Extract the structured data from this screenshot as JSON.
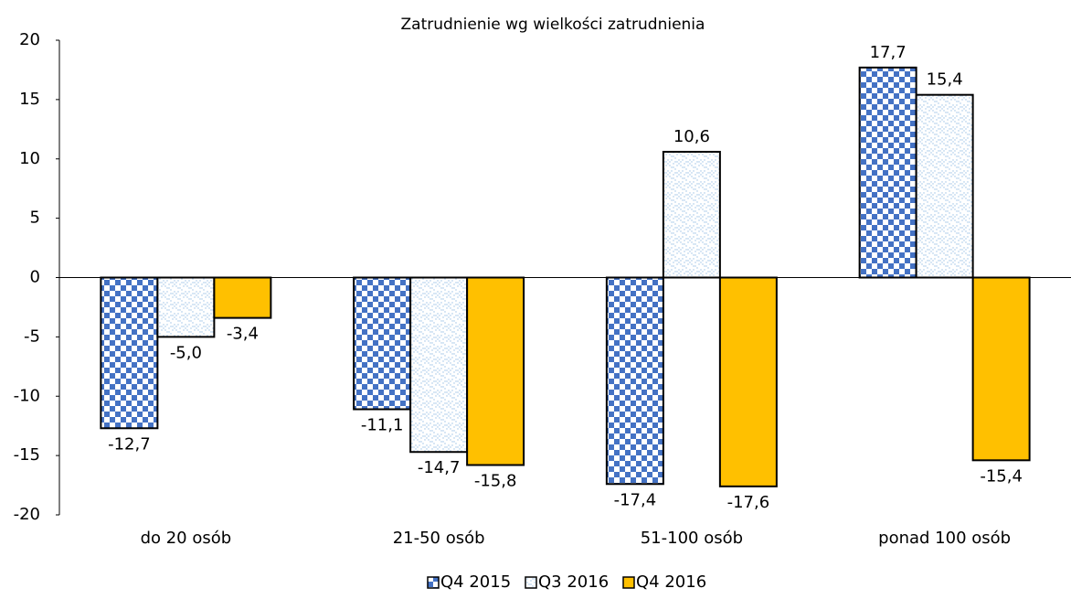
{
  "chart_data": {
    "type": "bar",
    "title": "Zatrudnienie wg wielkości zatrudnienia",
    "categories": [
      "do 20 osób",
      "21-50 osób",
      "51-100 osób",
      "ponad 100 osób"
    ],
    "series": [
      {
        "name": "Q4 2015",
        "color": "#4472c4",
        "values": [
          -12.7,
          -11.1,
          -17.4,
          17.7
        ],
        "value_labels": [
          "-12,7",
          "-11,1",
          "-17,4",
          "17,7"
        ]
      },
      {
        "name": "Q3 2016",
        "color": "#9dc3e6",
        "values": [
          -5.0,
          -14.7,
          10.6,
          15.4
        ],
        "value_labels": [
          "-5,0",
          "-14,7",
          "10,6",
          "15,4"
        ]
      },
      {
        "name": "Q4 2016",
        "color": "#ffc000",
        "values": [
          -3.4,
          -15.8,
          -17.6,
          -15.4
        ],
        "value_labels": [
          "-3,4",
          "-15,8",
          "-17,6",
          "-15,4"
        ]
      }
    ],
    "ylim": [
      -20,
      20
    ],
    "yticks": [
      -20,
      -15,
      -10,
      -5,
      0,
      5,
      10,
      15,
      20
    ],
    "grid": false,
    "legend": "bottom"
  }
}
